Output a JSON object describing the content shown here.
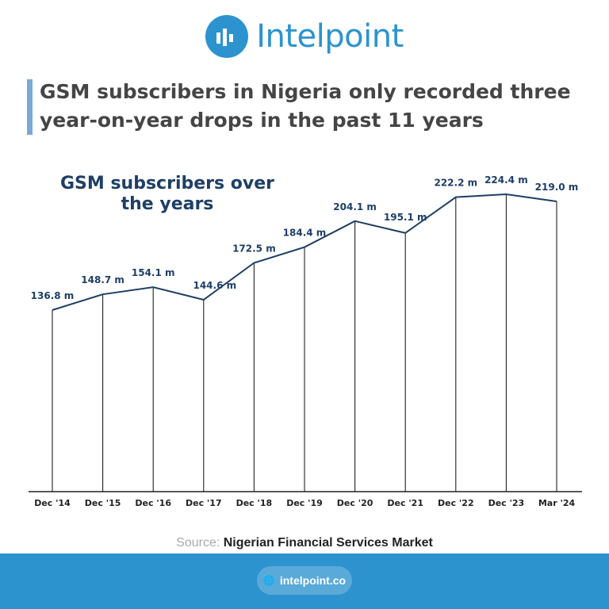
{
  "brand": {
    "name": "Intelpoint",
    "color": "#2c93cf"
  },
  "headline": {
    "text": "GSM subscribers in Nigeria only recorded three year-on-year drops in the past 11 years",
    "accent": "#7aa8d8"
  },
  "chart_data": {
    "type": "line",
    "title": "GSM subscribers over the years",
    "categories": [
      "Dec '14",
      "Dec '15",
      "Dec '16",
      "Dec '17",
      "Dec '18",
      "Dec '19",
      "Dec '20",
      "Dec '21",
      "Dec '22",
      "Dec '23",
      "Mar '24"
    ],
    "series": [
      {
        "values": [
          136.8,
          148.7,
          154.1,
          144.6,
          172.5,
          184.4,
          204.1,
          195.1,
          222.2,
          224.4,
          219.0
        ]
      }
    ],
    "labels": [
      "136.8 m",
      "148.7 m",
      "154.1 m",
      "144.6 m",
      "172.5 m",
      "184.4 m",
      "204.1 m",
      "195.1 m",
      "222.2 m",
      "224.4 m",
      "219.0 m"
    ],
    "unit": "m",
    "ylim": [
      0,
      250
    ],
    "grid": false,
    "line_color": "#1e3f66"
  },
  "source": {
    "label": "Source:",
    "value": "Nigerian Financial Services Market"
  },
  "footer": {
    "url": "intelpoint.co",
    "color": "#2c93cf"
  }
}
